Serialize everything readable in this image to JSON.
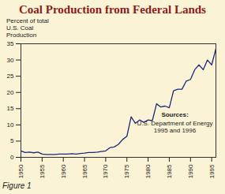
{
  "chart_data": {
    "type": "line",
    "title": "Coal Production from Federal Lands",
    "y_label": "Percent of total U.S. Coal Production",
    "x": [
      1950,
      1951,
      1952,
      1953,
      1954,
      1955,
      1956,
      1957,
      1958,
      1959,
      1960,
      1961,
      1962,
      1963,
      1964,
      1965,
      1966,
      1967,
      1968,
      1969,
      1970,
      1971,
      1972,
      1973,
      1974,
      1975,
      1976,
      1977,
      1978,
      1979,
      1980,
      1981,
      1982,
      1983,
      1984,
      1985,
      1986,
      1987,
      1988,
      1989,
      1990,
      1991,
      1992,
      1993,
      1994,
      1995,
      1996
    ],
    "values": [
      2.0,
      1.5,
      1.6,
      1.4,
      1.6,
      1.0,
      0.9,
      0.9,
      0.9,
      1.0,
      1.0,
      1.0,
      1.1,
      1.0,
      1.2,
      1.3,
      1.5,
      1.5,
      1.6,
      1.8,
      2.0,
      3.0,
      3.2,
      4.0,
      5.5,
      6.5,
      12.5,
      10.5,
      11.5,
      10.8,
      11.5,
      11.3,
      16.5,
      15.5,
      15.8,
      15.3,
      20.5,
      21.0,
      21.0,
      23.5,
      24.0,
      27.0,
      28.5,
      27.0,
      30.0,
      28.5,
      33.5
    ],
    "color": "#1c2a78",
    "xlim": [
      1950,
      1996
    ],
    "xticks": [
      1950,
      1955,
      1960,
      1965,
      1970,
      1975,
      1980,
      1985,
      1990,
      1995
    ],
    "ylim": [
      0,
      35
    ],
    "yticks": [
      0,
      5,
      10,
      15,
      20,
      25,
      30,
      35
    ],
    "grid": false,
    "annotations": [
      "Sources:",
      "U.S. Department of Energy",
      "1995 and 1996"
    ],
    "caption": "Figure 1"
  }
}
